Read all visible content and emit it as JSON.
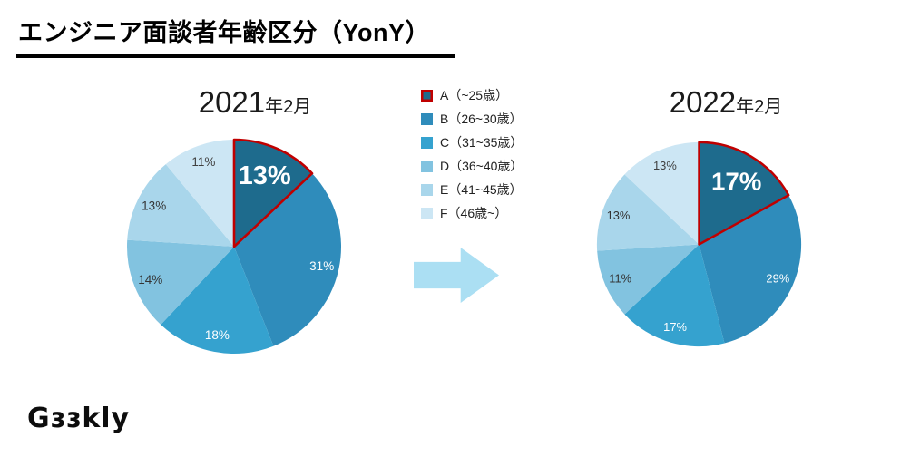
{
  "page": {
    "title": "エンジニア面談者年齢区分（YonY）"
  },
  "charts": [
    {
      "year": "2021",
      "suffix": "年2月"
    },
    {
      "year": "2022",
      "suffix": "年2月"
    }
  ],
  "legend": {
    "items": [
      {
        "label": "A（~25歳）",
        "swatch": "#1e6b8d",
        "swatch_border": "#c00000"
      },
      {
        "label": "B（26~30歳）",
        "swatch": "#2f8cbb"
      },
      {
        "label": "C（31~35歳）",
        "swatch": "#35a2cf"
      },
      {
        "label": "D（36~40歳）",
        "swatch": "#82c3e0"
      },
      {
        "label": "E（41~45歳）",
        "swatch": "#a9d6eb"
      },
      {
        "label": "F（46歳~）",
        "swatch": "#cce6f4"
      }
    ]
  },
  "chart_data": [
    {
      "type": "pie",
      "title": "2021年2月",
      "categories": [
        "A（~25歳）",
        "B（26~30歳）",
        "C（31~35歳）",
        "D（36~40歳）",
        "E（41~45歳）",
        "F（46歳~）"
      ],
      "values": [
        13,
        31,
        18,
        14,
        13,
        11
      ],
      "unit": "%",
      "start_angle_deg": 0,
      "direction": "clockwise",
      "highlight_index": 0,
      "legend_position": "top-center-shared"
    },
    {
      "type": "pie",
      "title": "2022年2月",
      "categories": [
        "A（~25歳）",
        "B（26~30歳）",
        "C（31~35歳）",
        "D（36~40歳）",
        "E（41~45歳）",
        "F（46歳~）"
      ],
      "values": [
        17,
        29,
        17,
        11,
        13,
        13
      ],
      "unit": "%",
      "start_angle_deg": 0,
      "direction": "clockwise",
      "highlight_index": 0,
      "legend_position": "top-center-shared"
    }
  ],
  "pie_style": {
    "colors": [
      "#1e6b8d",
      "#2f8cbb",
      "#35a2cf",
      "#82c3e0",
      "#a9d6eb",
      "#cce6f4"
    ],
    "label_colors": [
      "#ffffff",
      "#ffffff",
      "#ffffff",
      "#333333",
      "#333333",
      "#404040"
    ],
    "highlight_stroke": "#c00000",
    "big_label_font": 29,
    "small_label_font": 13.5,
    "big_label_radius": 0.72,
    "small_label_radius": 0.84
  },
  "arrow": {
    "direction": "right",
    "color": "#abdff3"
  },
  "logo": {
    "text": "Gɜɜkly"
  }
}
